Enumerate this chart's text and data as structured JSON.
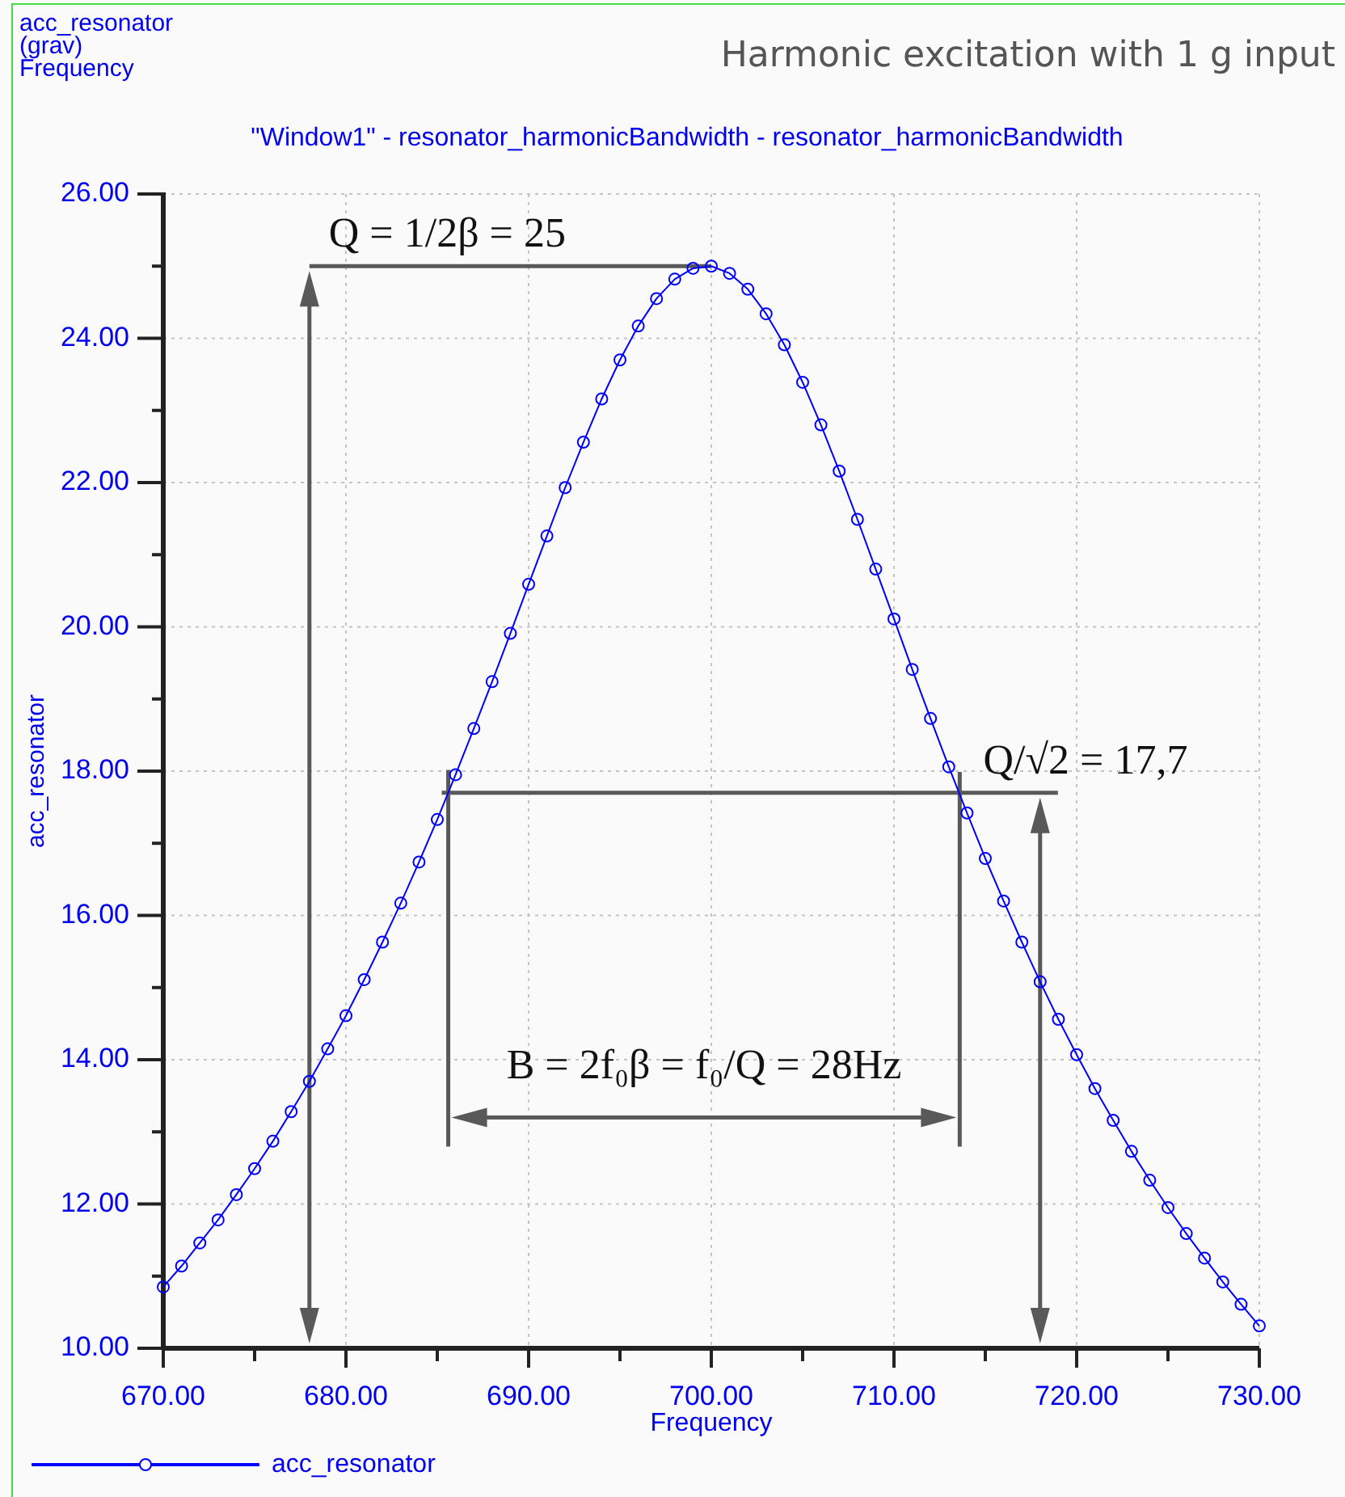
{
  "chart_data": {
    "type": "line",
    "title": "Harmonic excitation with 1 g input",
    "subtitle": "\"Window1\" - resonator_harmonicBandwidth - resonator_harmonicBandwidth",
    "xlabel": "Frequency",
    "ylabel": "acc_resonator",
    "annotations": [
      "acc_resonator",
      "(grav)",
      "Frequency",
      "B = 2f₀β = f₀/Q = 28Hz"
    ],
    "x": [
      670,
      671,
      672,
      673,
      674,
      675,
      676,
      677,
      678,
      679,
      680,
      681,
      682,
      683,
      684,
      685,
      686,
      687,
      688,
      689,
      690,
      691,
      692,
      693,
      694,
      695,
      696,
      697,
      698,
      699,
      700,
      701,
      702,
      703,
      704,
      705,
      706,
      707,
      708,
      709,
      710,
      711,
      712,
      713,
      714,
      715,
      716,
      717,
      718,
      719,
      720,
      721,
      722,
      723,
      724,
      725,
      726,
      727,
      728,
      729,
      730
    ],
    "series": [
      {
        "name": "acc_resonator",
        "color": "#0000ff",
        "values": [
          10.85,
          11.14,
          11.46,
          11.78,
          12.13,
          12.49,
          12.87,
          13.28,
          13.7,
          14.15,
          14.61,
          15.11,
          15.63,
          16.17,
          16.74,
          17.33,
          17.95,
          18.59,
          19.24,
          19.91,
          20.59,
          21.26,
          21.93,
          22.56,
          23.16,
          23.7,
          24.17,
          24.55,
          24.82,
          24.97,
          25.0,
          24.9,
          24.68,
          24.34,
          23.91,
          23.39,
          22.8,
          22.16,
          21.49,
          20.8,
          20.11,
          19.41,
          18.73,
          18.06,
          17.42,
          16.79,
          16.2,
          15.63,
          15.08,
          14.56,
          14.07,
          13.6,
          13.16,
          12.73,
          12.33,
          11.95,
          11.59,
          11.25,
          10.92,
          10.61,
          10.31
        ]
      }
    ],
    "xlim": [
      670,
      730
    ],
    "ylim": [
      10,
      26
    ],
    "xticks": [
      {
        "value": 670,
        "label": "670.00"
      },
      {
        "value": 675,
        "label": null
      },
      {
        "value": 680,
        "label": "680.00"
      },
      {
        "value": 685,
        "label": null
      },
      {
        "value": 690,
        "label": "690.00"
      },
      {
        "value": 695,
        "label": null
      },
      {
        "value": 700,
        "label": "700.00"
      },
      {
        "value": 705,
        "label": null
      },
      {
        "value": 710,
        "label": "710.00"
      },
      {
        "value": 715,
        "label": null
      },
      {
        "value": 720,
        "label": "720.00"
      },
      {
        "value": 725,
        "label": null
      },
      {
        "value": 730,
        "label": "730.00"
      }
    ],
    "yticks": [
      {
        "value": 10,
        "label": "10.00"
      },
      {
        "value": 11,
        "label": null
      },
      {
        "value": 12,
        "label": "12.00"
      },
      {
        "value": 13,
        "label": null
      },
      {
        "value": 14,
        "label": "14.00"
      },
      {
        "value": 15,
        "label": null
      },
      {
        "value": 16,
        "label": "16.00"
      },
      {
        "value": 17,
        "label": null
      },
      {
        "value": 18,
        "label": "18.00"
      },
      {
        "value": 19,
        "label": null
      },
      {
        "value": 20,
        "label": "20.00"
      },
      {
        "value": 21,
        "label": null
      },
      {
        "value": 22,
        "label": "22.00"
      },
      {
        "value": 23,
        "label": null
      },
      {
        "value": 24,
        "label": "24.00"
      },
      {
        "value": 25,
        "label": null
      },
      {
        "value": 26,
        "label": "26.00"
      }
    ],
    "grid": true,
    "legend": "bottom left",
    "marker": "circle",
    "line_style": "solid",
    "ref_lines": [
      {
        "axis": "y",
        "value": 25,
        "label": "Q = 1/2β = 25",
        "color": "#595959"
      },
      {
        "axis": "y",
        "value": 17.7,
        "label": "Q/√2 = 17,7",
        "color": "#595959"
      },
      {
        "axis": "x",
        "value": 678,
        "color": "#595959"
      },
      {
        "axis": "x",
        "value": 718,
        "color": "#595959"
      },
      {
        "axis": "x",
        "value": 685.6,
        "color": "#595959"
      },
      {
        "axis": "x",
        "value": 713.6,
        "color": "#595959"
      }
    ]
  }
}
